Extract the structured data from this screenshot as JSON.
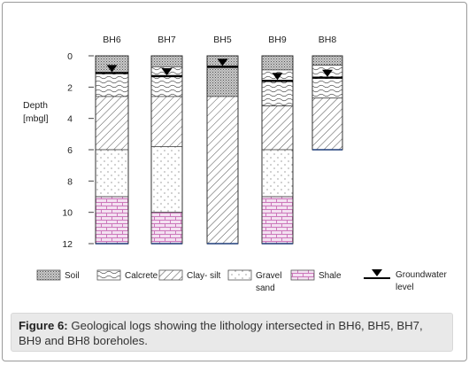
{
  "diagram": {
    "boreholes": [
      {
        "name": "BH6",
        "depth": 12,
        "groundwater": 1.1,
        "layers": [
          {
            "lith": "soil",
            "top": 0,
            "bottom": 1.1
          },
          {
            "lith": "calcrete",
            "top": 1.1,
            "bottom": 2.6
          },
          {
            "lith": "clay",
            "top": 2.6,
            "bottom": 6.0
          },
          {
            "lith": "gravel",
            "top": 6.0,
            "bottom": 9.0
          },
          {
            "lith": "shale",
            "top": 9.0,
            "bottom": 12.0
          }
        ]
      },
      {
        "name": "BH7",
        "depth": 12,
        "groundwater": 1.3,
        "layers": [
          {
            "lith": "soil",
            "top": 0,
            "bottom": 0.7
          },
          {
            "lith": "calcrete",
            "top": 0.7,
            "bottom": 2.6
          },
          {
            "lith": "clay",
            "top": 2.6,
            "bottom": 5.8
          },
          {
            "lith": "gravel",
            "top": 5.8,
            "bottom": 10.0
          },
          {
            "lith": "shale",
            "top": 10.0,
            "bottom": 12.0
          }
        ]
      },
      {
        "name": "BH5",
        "depth": 12,
        "groundwater": 0.7,
        "layers": [
          {
            "lith": "soil",
            "top": 0,
            "bottom": 2.6
          },
          {
            "lith": "clay",
            "top": 2.6,
            "bottom": 12.0
          }
        ]
      },
      {
        "name": "BH9",
        "depth": 12,
        "groundwater": 1.6,
        "layers": [
          {
            "lith": "soil",
            "top": 0,
            "bottom": 0.9
          },
          {
            "lith": "calcrete",
            "top": 0.9,
            "bottom": 3.2
          },
          {
            "lith": "clay",
            "top": 3.2,
            "bottom": 6.0
          },
          {
            "lith": "gravel",
            "top": 6.0,
            "bottom": 9.0
          },
          {
            "lith": "shale",
            "top": 9.0,
            "bottom": 12.0
          }
        ]
      },
      {
        "name": "BH8",
        "depth": 6,
        "groundwater": 1.4,
        "layers": [
          {
            "lith": "soil",
            "top": 0,
            "bottom": 0.6
          },
          {
            "lith": "calcrete",
            "top": 0.6,
            "bottom": 2.7
          },
          {
            "lith": "clay",
            "top": 2.7,
            "bottom": 6.0
          }
        ]
      }
    ],
    "depth_axis": {
      "label_line1": "Depth",
      "label_line2": "[mbgl]",
      "ticks": [
        0,
        2,
        4,
        6,
        8,
        10,
        12
      ],
      "max": 12
    },
    "legend": [
      {
        "lith": "soil",
        "label": "Soil",
        "label2": ""
      },
      {
        "lith": "calcrete",
        "label": "Calcrete",
        "label2": ""
      },
      {
        "lith": "clay",
        "label": "Clay- silt",
        "label2": ""
      },
      {
        "lith": "gravel",
        "label": "Gravel",
        "label2": "sand"
      },
      {
        "lith": "shale",
        "label": "Shale",
        "label2": ""
      },
      {
        "lith": "groundwater",
        "label": "Groundwater",
        "label2": "level"
      }
    ]
  },
  "caption": {
    "prefix": "Figure 6:",
    "text": " Geological logs showing the lithology intersected in BH6, BH5, BH7, BH9 and BH8 boreholes."
  }
}
